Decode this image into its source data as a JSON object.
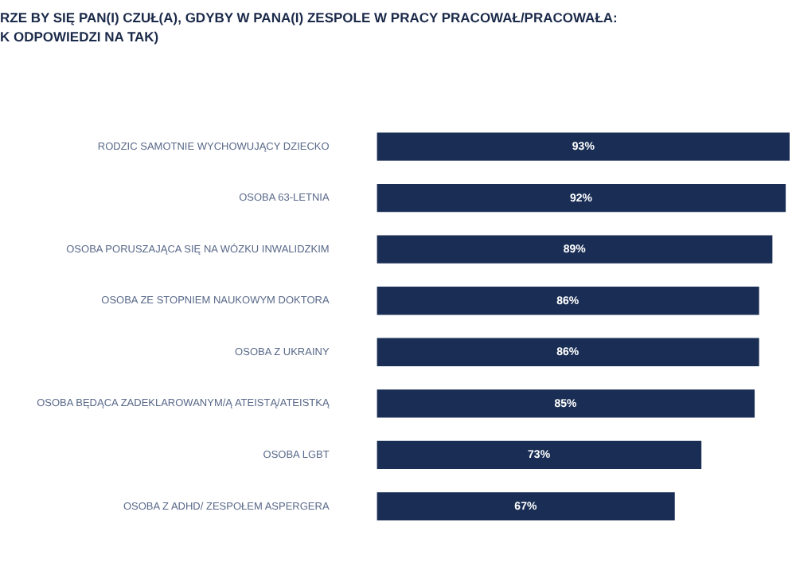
{
  "chart_data": {
    "type": "bar",
    "orientation": "horizontal",
    "title": "RZE BY SIĘ PAN(I) CZUŁ(A), GDYBY W PANA(I) ZESPOLE W PRACY PRACOWAŁ/PRACOWAŁA:",
    "subtitle": "K ODPOWIEDZI NA TAK)",
    "categories": [
      "RODZIC SAMOTNIE WYCHOWUJĄCY DZIECKO",
      "OSOBA 63-LETNIA",
      "OSOBA PORUSZAJĄCA SIĘ NA WÓZKU INWALIDZKIM",
      "OSOBA ZE STOPNIEM NAUKOWYM DOKTORA",
      "OSOBA Z UKRAINY",
      "OSOBA BĘDĄCA ZADEKLAROWANYM/Ą ATEISTĄ/ATEISTKĄ",
      "OSOBA LGBT",
      "OSOBA Z ADHD/ ZESPOŁEM ASPERGERA"
    ],
    "values": [
      93,
      92,
      89,
      86,
      86,
      85,
      73,
      67
    ],
    "value_labels": [
      "93%",
      "92%",
      "89%",
      "86%",
      "86%",
      "85%",
      "73%",
      "67%"
    ],
    "color": "#1a2e55",
    "tick_labels": "y",
    "legend": false
  }
}
